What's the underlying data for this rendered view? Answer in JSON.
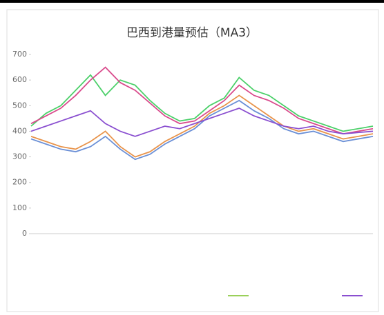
{
  "chart_data": {
    "type": "line",
    "title": "巴西到港量预估（MA3）",
    "categories": [
      null,
      null,
      null,
      null,
      null,
      null,
      null,
      null,
      null,
      null,
      null,
      null,
      null,
      null,
      null,
      null,
      null,
      null,
      null,
      null,
      null,
      null,
      null,
      null
    ],
    "series": [
      {
        "color": "#4cd06a",
        "values": [
          420,
          470,
          500,
          560,
          620,
          540,
          600,
          580,
          520,
          470,
          440,
          450,
          500,
          530,
          610,
          560,
          540,
          500,
          460,
          440,
          420,
          400,
          410,
          420
        ]
      },
      {
        "color": "#d94a8c",
        "values": [
          430,
          460,
          490,
          540,
          600,
          650,
          590,
          560,
          510,
          460,
          430,
          440,
          480,
          520,
          580,
          540,
          520,
          490,
          450,
          430,
          410,
          390,
          400,
          410
        ]
      },
      {
        "color": "#e8934a",
        "values": [
          380,
          360,
          340,
          330,
          360,
          400,
          340,
          300,
          320,
          360,
          390,
          420,
          470,
          500,
          540,
          500,
          460,
          420,
          400,
          410,
          390,
          370,
          380,
          390
        ]
      },
      {
        "color": "#6a8fd6",
        "values": [
          370,
          350,
          330,
          320,
          340,
          380,
          330,
          290,
          310,
          350,
          380,
          410,
          460,
          490,
          520,
          480,
          450,
          410,
          390,
          400,
          380,
          360,
          370,
          380
        ]
      },
      {
        "color": "#8a4fd0",
        "values": [
          400,
          420,
          440,
          460,
          480,
          430,
          400,
          380,
          400,
          420,
          410,
          430,
          450,
          470,
          490,
          460,
          440,
          420,
          410,
          420,
          400,
          390,
          395,
          400
        ]
      }
    ],
    "ylim": [
      0,
      700
    ],
    "yticks": [
      0,
      100,
      200,
      300,
      400,
      500,
      600,
      700
    ],
    "grid": false
  }
}
